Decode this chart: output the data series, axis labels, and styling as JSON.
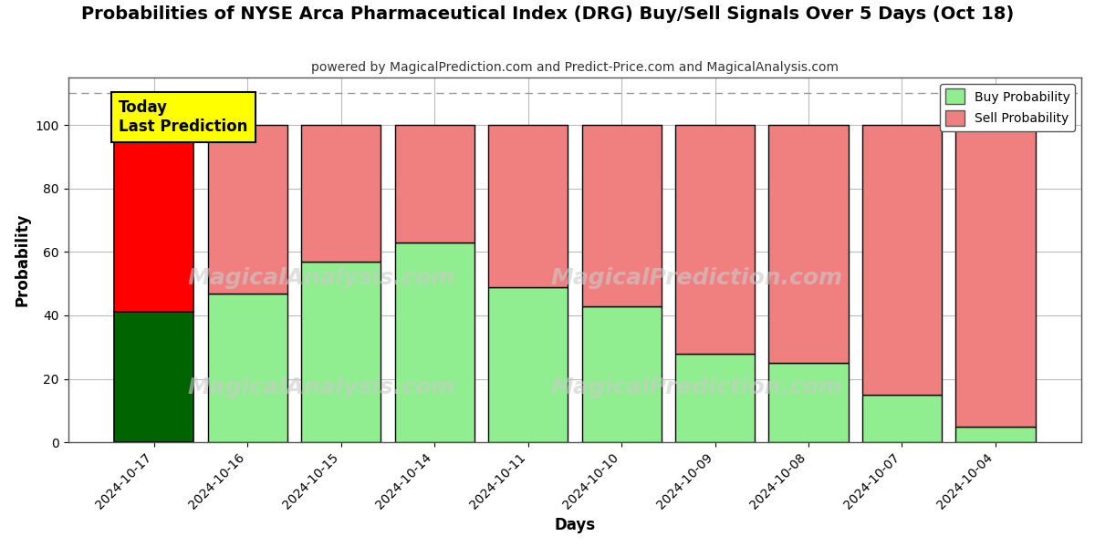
{
  "title": "Probabilities of NYSE Arca Pharmaceutical Index (DRG) Buy/Sell Signals Over 5 Days (Oct 18)",
  "subtitle": "powered by MagicalPrediction.com and Predict-Price.com and MagicalAnalysis.com",
  "xlabel": "Days",
  "ylabel": "Probability",
  "categories": [
    "2024-10-17",
    "2024-10-16",
    "2024-10-15",
    "2024-10-14",
    "2024-10-11",
    "2024-10-10",
    "2024-10-09",
    "2024-10-08",
    "2024-10-07",
    "2024-10-04"
  ],
  "buy_values": [
    41,
    47,
    57,
    63,
    49,
    43,
    28,
    25,
    15,
    5
  ],
  "sell_values": [
    59,
    53,
    43,
    37,
    51,
    57,
    72,
    75,
    85,
    95
  ],
  "today_buy_color": "#006400",
  "today_sell_color": "#ff0000",
  "buy_color": "#90EE90",
  "sell_color": "#F08080",
  "bar_edgecolor": "#000000",
  "today_annotation": "Today\nLast Prediction",
  "annotation_bg_color": "#ffff00",
  "annotation_fontsize": 12,
  "dashed_line_y": 110,
  "ylim": [
    0,
    115
  ],
  "yticks": [
    0,
    20,
    40,
    60,
    80,
    100
  ],
  "title_fontsize": 14,
  "subtitle_fontsize": 10,
  "legend_labels": [
    "Buy Probability",
    "Sell Probability"
  ],
  "watermark_texts": [
    "MagicalAnalysis.com",
    "MagicalPrediction.com"
  ],
  "background_color": "#ffffff",
  "grid_color": "#bbbbbb"
}
